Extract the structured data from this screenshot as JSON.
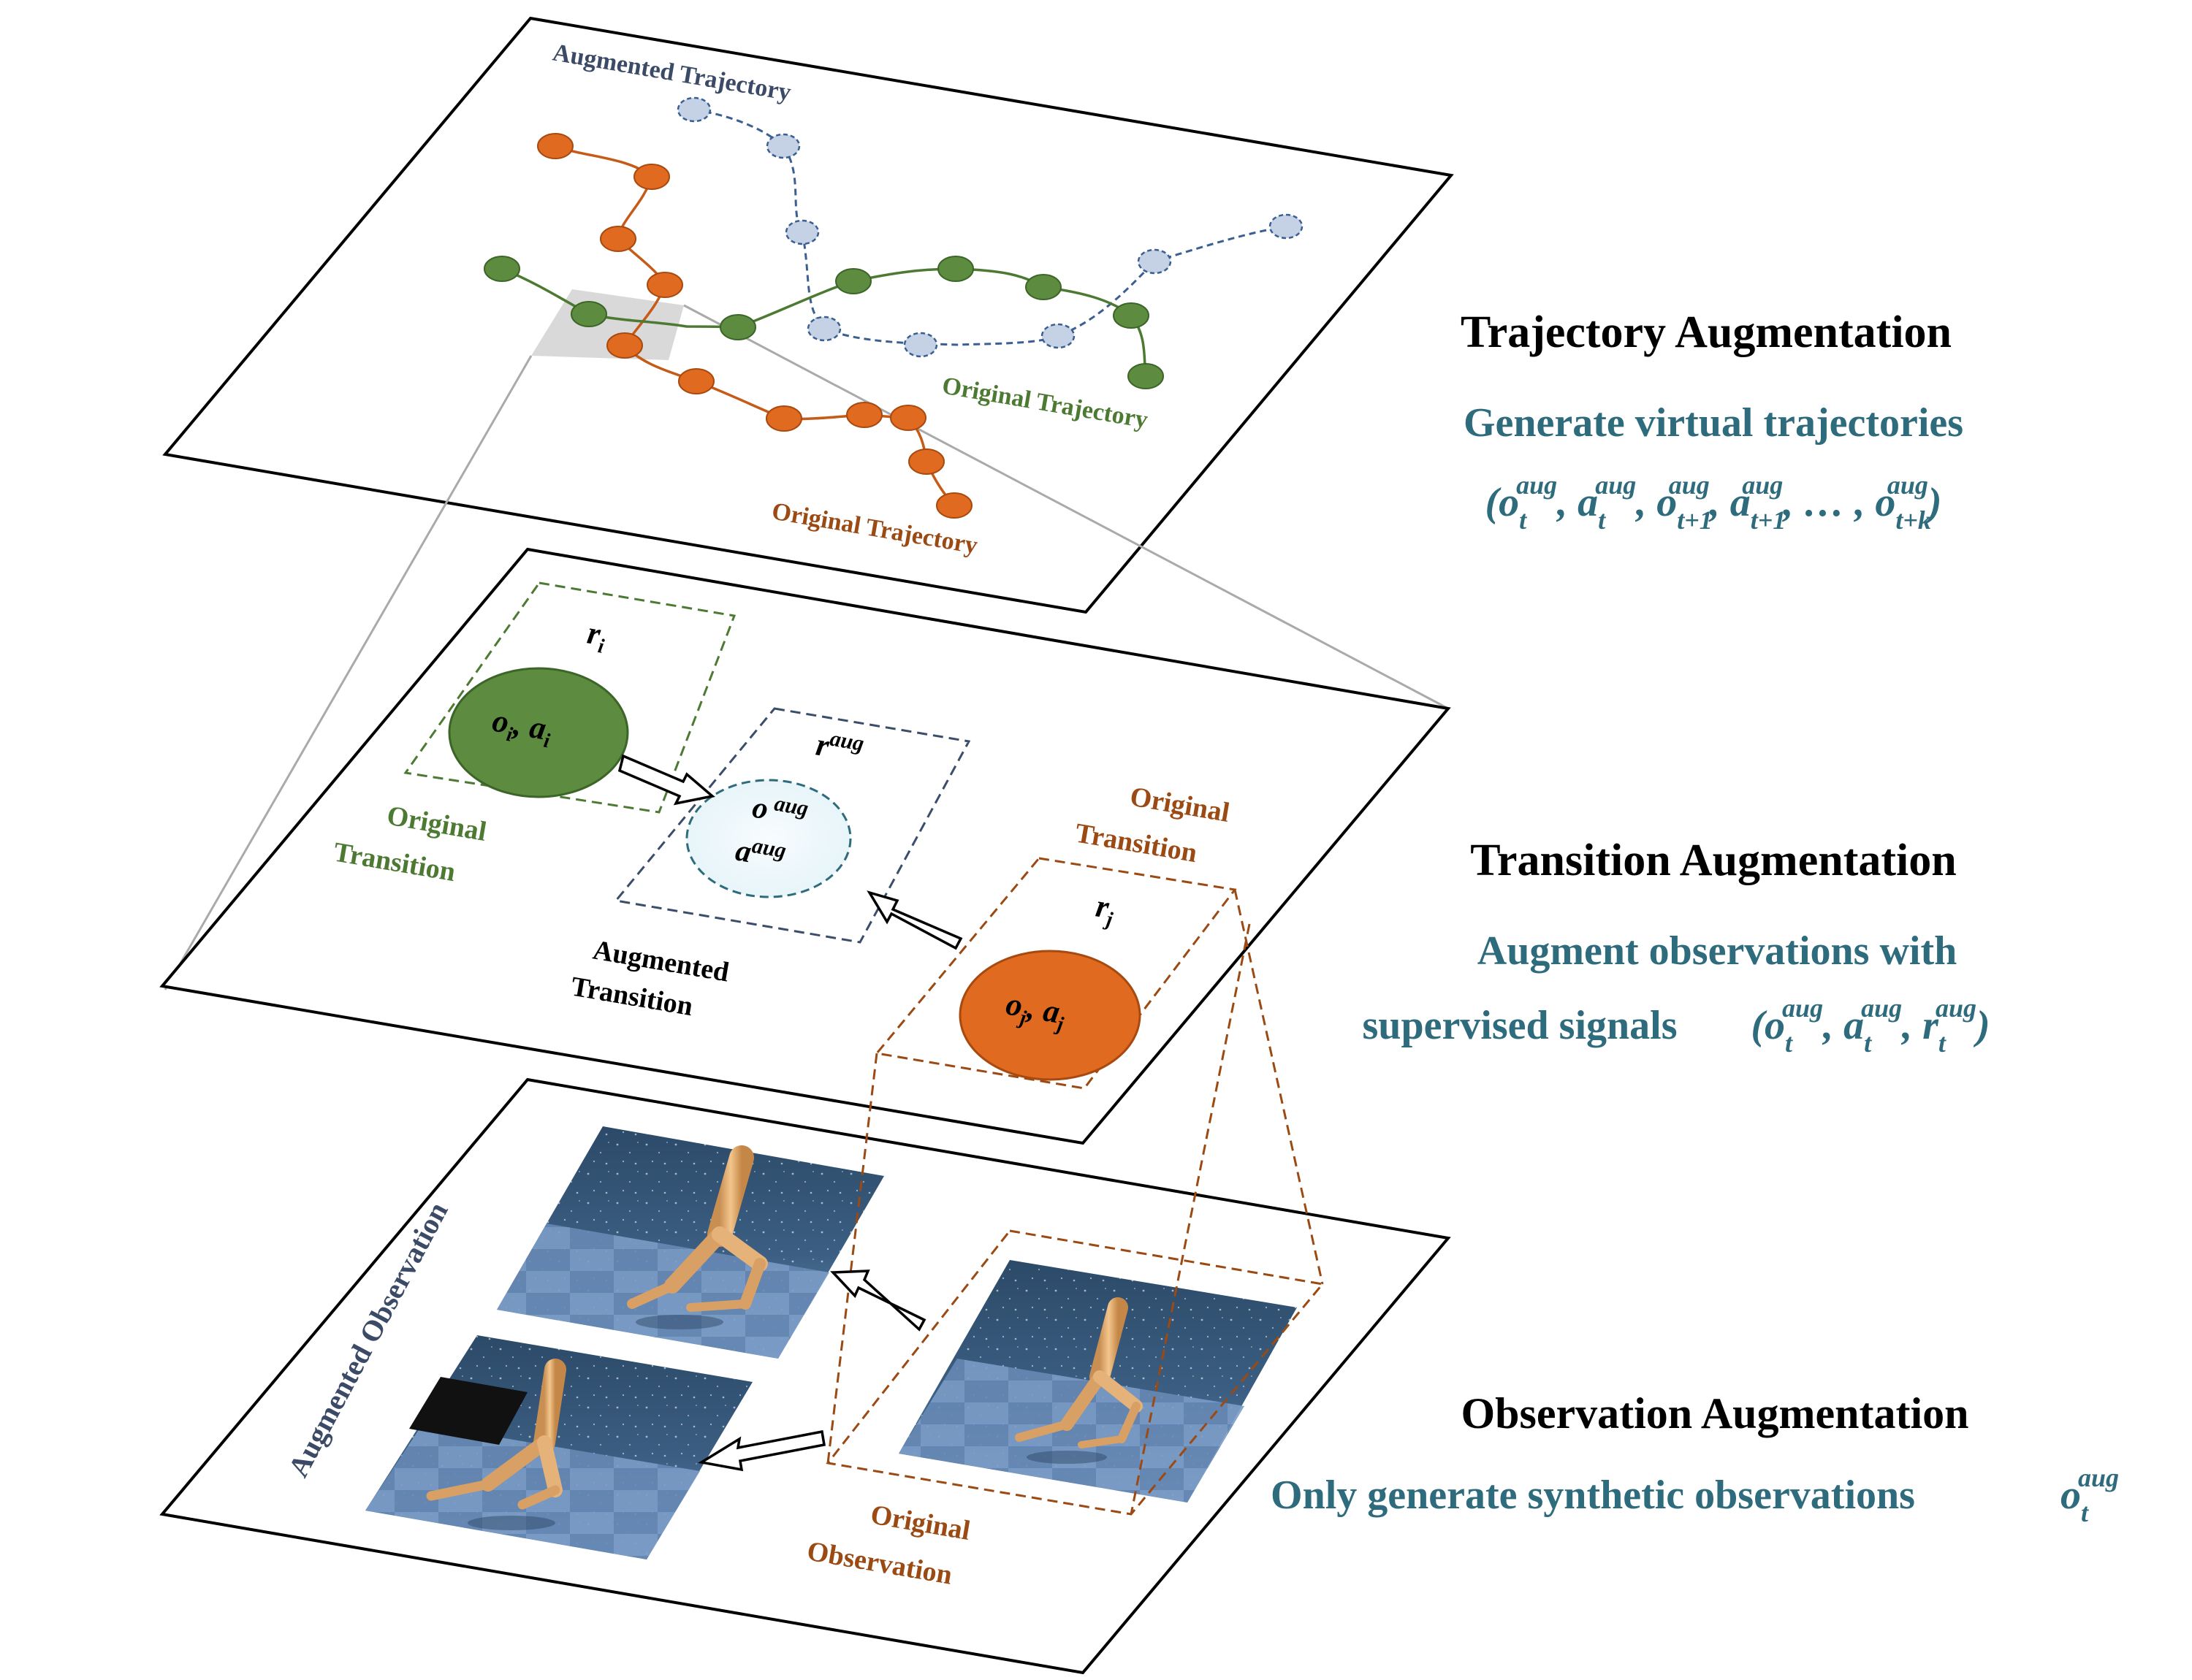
{
  "colors": {
    "green": "#5d8b3f",
    "orange": "#e06a1f",
    "blue_node": "#c5d1e4",
    "teal_text": "#2e6b7c",
    "brown_text": "#9b4a13",
    "plane_border": "#000000",
    "aug_ellipse": "#eef8fb"
  },
  "top_layer": {
    "augmented_trajectory_label": "Augmented Trajectory",
    "original_trajectory_green_label": "Original Trajectory",
    "original_trajectory_orange_label": "Original Trajectory"
  },
  "middle_layer": {
    "green_reward": "r_i",
    "green_pair": "o_i, a_i",
    "green_label_line1": "Original",
    "green_label_line2": "Transition",
    "aug_reward": "r^aug",
    "aug_obs": "o^aug",
    "aug_act": "a^aug",
    "aug_label_line1": "Augmented",
    "aug_label_line2": "Transition",
    "orange_reward": "r_j",
    "orange_pair": "o_j, a_j",
    "orange_label_line1": "Original",
    "orange_label_line2": "Transition"
  },
  "bottom_layer": {
    "augmented_observation_label": "Augmented Observation",
    "original_label_line1": "Original",
    "original_label_line2": "Observation"
  },
  "right_panel": {
    "trajectory": {
      "title": "Trajectory Augmentation",
      "desc": "Generate virtual trajectories",
      "formula": "(o_t^aug, a_t^aug, o_t+1^aug, a_t+1^aug, …, o_t+k^aug)"
    },
    "transition": {
      "title": "Transition Augmentation",
      "desc_line1": "Augment observations with",
      "desc_line2": "supervised signals",
      "formula": "(o_t^aug, a_t^aug, r_t^aug)"
    },
    "observation": {
      "title": "Observation Augmentation",
      "desc": "Only generate synthetic observations",
      "formula": "o_t^aug"
    }
  }
}
